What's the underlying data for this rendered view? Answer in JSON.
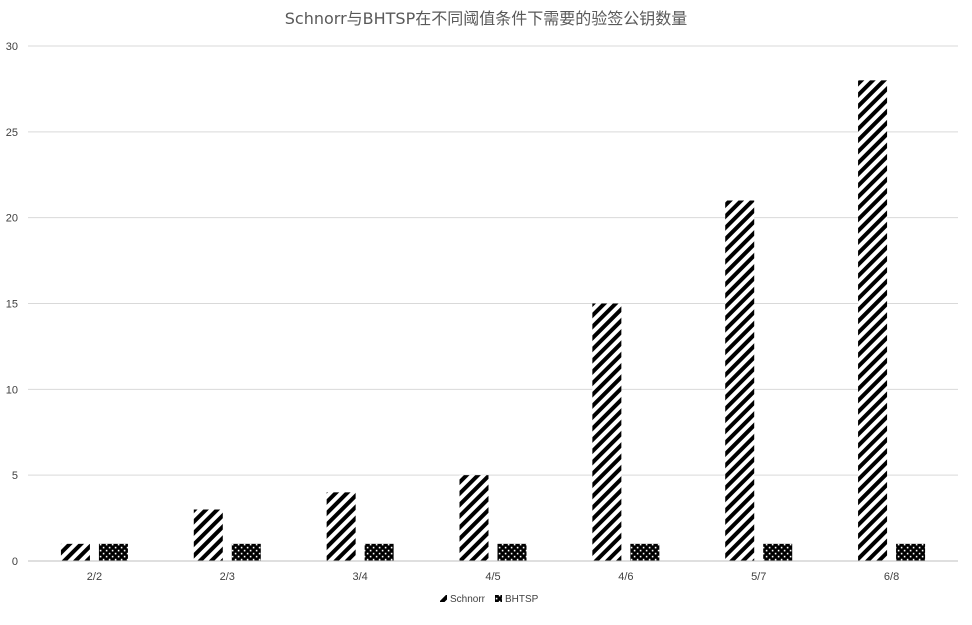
{
  "chart_data": {
    "type": "bar",
    "title": "Schnorr与BHTSP在不同阈值条件下需要的验签公钥数量",
    "categories": [
      "2/2",
      "2/3",
      "3/4",
      "4/5",
      "4/6",
      "5/7",
      "6/8"
    ],
    "series": [
      {
        "name": "Schnorr",
        "values": [
          1,
          3,
          4,
          5,
          15,
          21,
          28
        ],
        "pattern": "diagonal-stripes",
        "color": "#000000"
      },
      {
        "name": "BHTSP",
        "values": [
          1,
          1,
          1,
          1,
          1,
          1,
          1
        ],
        "pattern": "checker-dots",
        "color": "#000000"
      }
    ],
    "xlabel": "",
    "ylabel": "",
    "ylim": [
      0,
      30
    ],
    "yticks": [
      0,
      5,
      10,
      15,
      20,
      25,
      30
    ],
    "grid": true,
    "legend_position": "bottom-center",
    "gridline_color": "#d9d9d9",
    "axis_color": "#bfbfbf"
  }
}
